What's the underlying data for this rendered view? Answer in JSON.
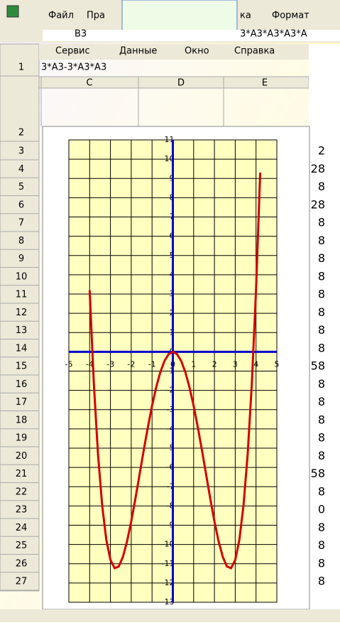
{
  "window": {
    "menu_top": [
      "Файл",
      "Пра",
      "ка",
      "Формат"
    ],
    "cell_ref": "B3",
    "formula_top": "3*A3*A3*A3*A",
    "menu_popup": [
      "Сервис",
      "Данные",
      "Окно",
      "Справка"
    ],
    "formula_cell": "3*A3-3*A3*A3",
    "columns": [
      "C",
      "D",
      "E"
    ],
    "rows": [
      "1",
      "2",
      "3",
      "4",
      "5",
      "6",
      "7",
      "8",
      "9",
      "10",
      "11",
      "12",
      "13",
      "14",
      "15",
      "16",
      "17",
      "18",
      "19",
      "20",
      "21",
      "22",
      "23",
      "24",
      "25",
      "26",
      "27"
    ],
    "right_cells": [
      "2",
      "28",
      "8",
      "28",
      "8",
      "8",
      "8",
      "8",
      "8",
      "8",
      "8",
      "8",
      "58",
      "8",
      "8",
      "8",
      "8",
      "8",
      "58",
      "8",
      "0",
      "8",
      "8",
      "8",
      "8"
    ]
  },
  "chart_data": {
    "type": "line",
    "x": [
      -4,
      -3.8,
      -3.6,
      -3.4,
      -3.2,
      -3,
      -2.8,
      -2.6,
      -2.4,
      -2.2,
      -2,
      -1.8,
      -1.6,
      -1.4,
      -1.2,
      -1,
      -0.8,
      -0.6,
      -0.4,
      -0.2,
      0,
      0.2,
      0.4,
      0.6,
      0.8,
      1,
      1.2,
      1.4,
      1.6,
      1.8,
      2,
      2.2,
      2.4,
      2.6,
      2.8,
      3,
      3.2,
      3.4,
      3.6,
      3.8,
      4,
      4.2
    ],
    "series": [
      {
        "color": "#d40000",
        "values": [
          3.2,
          -1.62,
          -5.29,
          -7.95,
          -9.75,
          -10.8,
          -11.23,
          -11.14,
          -10.64,
          -9.83,
          -8.8,
          -7.62,
          -6.37,
          -5.11,
          -3.91,
          -2.8,
          -1.84,
          -1.05,
          -0.47,
          -0.12,
          0,
          -0.12,
          -0.47,
          -1.05,
          -1.84,
          -2.8,
          -3.91,
          -5.11,
          -6.37,
          -7.62,
          -8.8,
          -9.83,
          -10.64,
          -11.14,
          -11.23,
          -10.8,
          -9.75,
          -7.95,
          -5.29,
          -1.62,
          3.2,
          9.3
        ]
      }
    ],
    "xlim": [
      -5,
      5
    ],
    "xticks": [
      -5,
      -4,
      -3,
      -2,
      -1,
      0,
      1,
      2,
      3,
      4,
      5
    ],
    "ylim": [
      -13,
      11
    ],
    "yticks": [
      -13,
      -12,
      -11,
      -10,
      -9,
      -8,
      -7,
      -6,
      -5,
      -4,
      -3,
      -2,
      -1,
      0,
      1,
      2,
      3,
      4,
      5,
      6,
      7,
      8,
      9,
      10,
      11
    ],
    "grid": true,
    "axis_color": "#0000cc",
    "plot_color": "#ffffc0"
  }
}
